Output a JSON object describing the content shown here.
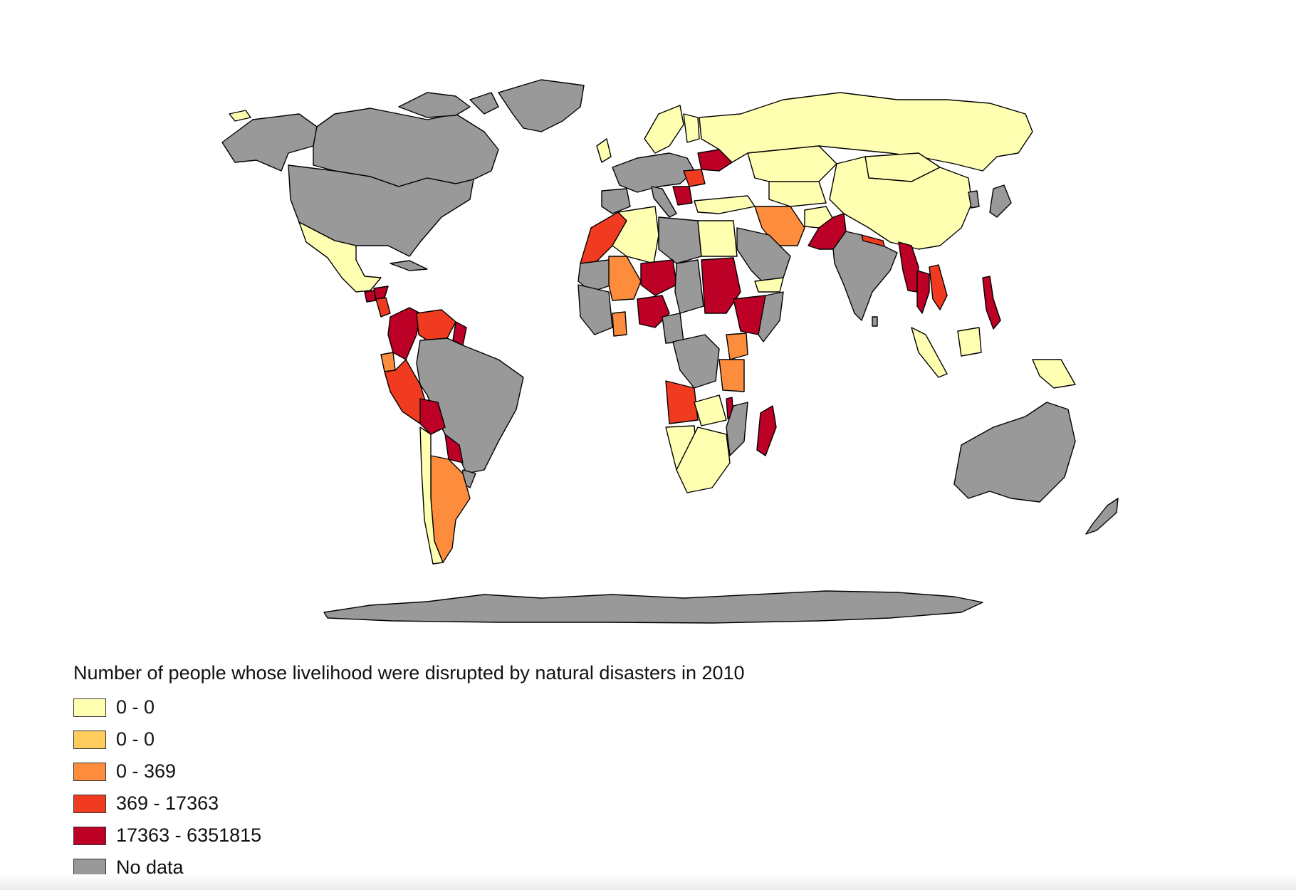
{
  "title": "Number of people whose livelihood were disrupted by natural disasters in 2010",
  "colors": {
    "class_1": "#ffffb2",
    "class_2": "#fecc5c",
    "class_3": "#fd8d3c",
    "class_4": "#f03b20",
    "class_5": "#bd0026",
    "no_data": "#999999"
  },
  "legend": [
    {
      "label": "0 - 0",
      "color": "#ffffb2"
    },
    {
      "label": "0 - 0",
      "color": "#fecc5c"
    },
    {
      "label": "0 - 369",
      "color": "#fd8d3c"
    },
    {
      "label": "369 - 17363",
      "color": "#f03b20"
    },
    {
      "label": "17363 - 6351815",
      "color": "#bd0026"
    },
    {
      "label": "No data",
      "color": "#999999"
    }
  ],
  "regions": {
    "canada": "no_data",
    "usa": "no_data",
    "alaska": "no_data",
    "greenland": "no_data",
    "arctic_islands": "no_data",
    "iceland": "class_1",
    "mexico": "class_1",
    "guatemala": "class_5",
    "honduras": "class_5",
    "nicaragua": "class_4",
    "cuba": "no_data",
    "colombia": "class_5",
    "venezuela": "class_4",
    "guyana": "class_5",
    "ecuador": "class_3",
    "peru": "class_4",
    "brazil": "no_data",
    "bolivia": "class_5",
    "paraguay": "class_5",
    "chile": "class_1",
    "argentina": "class_3",
    "uruguay": "no_data",
    "scandinavia": "class_1",
    "finland": "class_1",
    "uk": "class_1",
    "western_europe": "no_data",
    "iberia": "no_data",
    "italy": "no_data",
    "ukraine": "class_5",
    "romania": "class_4",
    "balkans": "class_5",
    "turkey": "class_1",
    "russia": "class_1",
    "kazakhstan": "class_1",
    "central_asia": "class_1",
    "afghanistan": "class_1",
    "iran": "class_3",
    "pakistan": "class_5",
    "india": "no_data",
    "nepal": "class_4",
    "china": "class_1",
    "mongolia": "class_1",
    "myanmar": "class_5",
    "thailand": "class_5",
    "vietnam": "class_4",
    "philippines": "class_5",
    "korea": "no_data",
    "japan": "no_data",
    "sumatra": "class_1",
    "borneo": "class_1",
    "new_guinea": "class_1",
    "australia": "no_data",
    "new_zealand": "no_data",
    "morocco": "class_4",
    "algeria": "class_1",
    "libya": "no_data",
    "egypt": "class_1",
    "mauritania": "no_data",
    "mali": "class_3",
    "niger": "class_5",
    "chad": "no_data",
    "sudan": "class_5",
    "ethiopia": "class_5",
    "somalia": "no_data",
    "saudi_arabia": "no_data",
    "yemen": "class_1",
    "nigeria": "class_5",
    "ghana": "class_3",
    "west_coast": "no_data",
    "cameroon": "no_data",
    "drc": "no_data",
    "kenya": "class_3",
    "tanzania": "class_3",
    "angola": "class_4",
    "zambia": "class_1",
    "namibia": "class_1",
    "south_africa": "class_1",
    "mozambique": "no_data",
    "malawi": "class_5",
    "madagascar": "class_5",
    "antarctica": "no_data",
    "sri_lanka": "no_data"
  }
}
